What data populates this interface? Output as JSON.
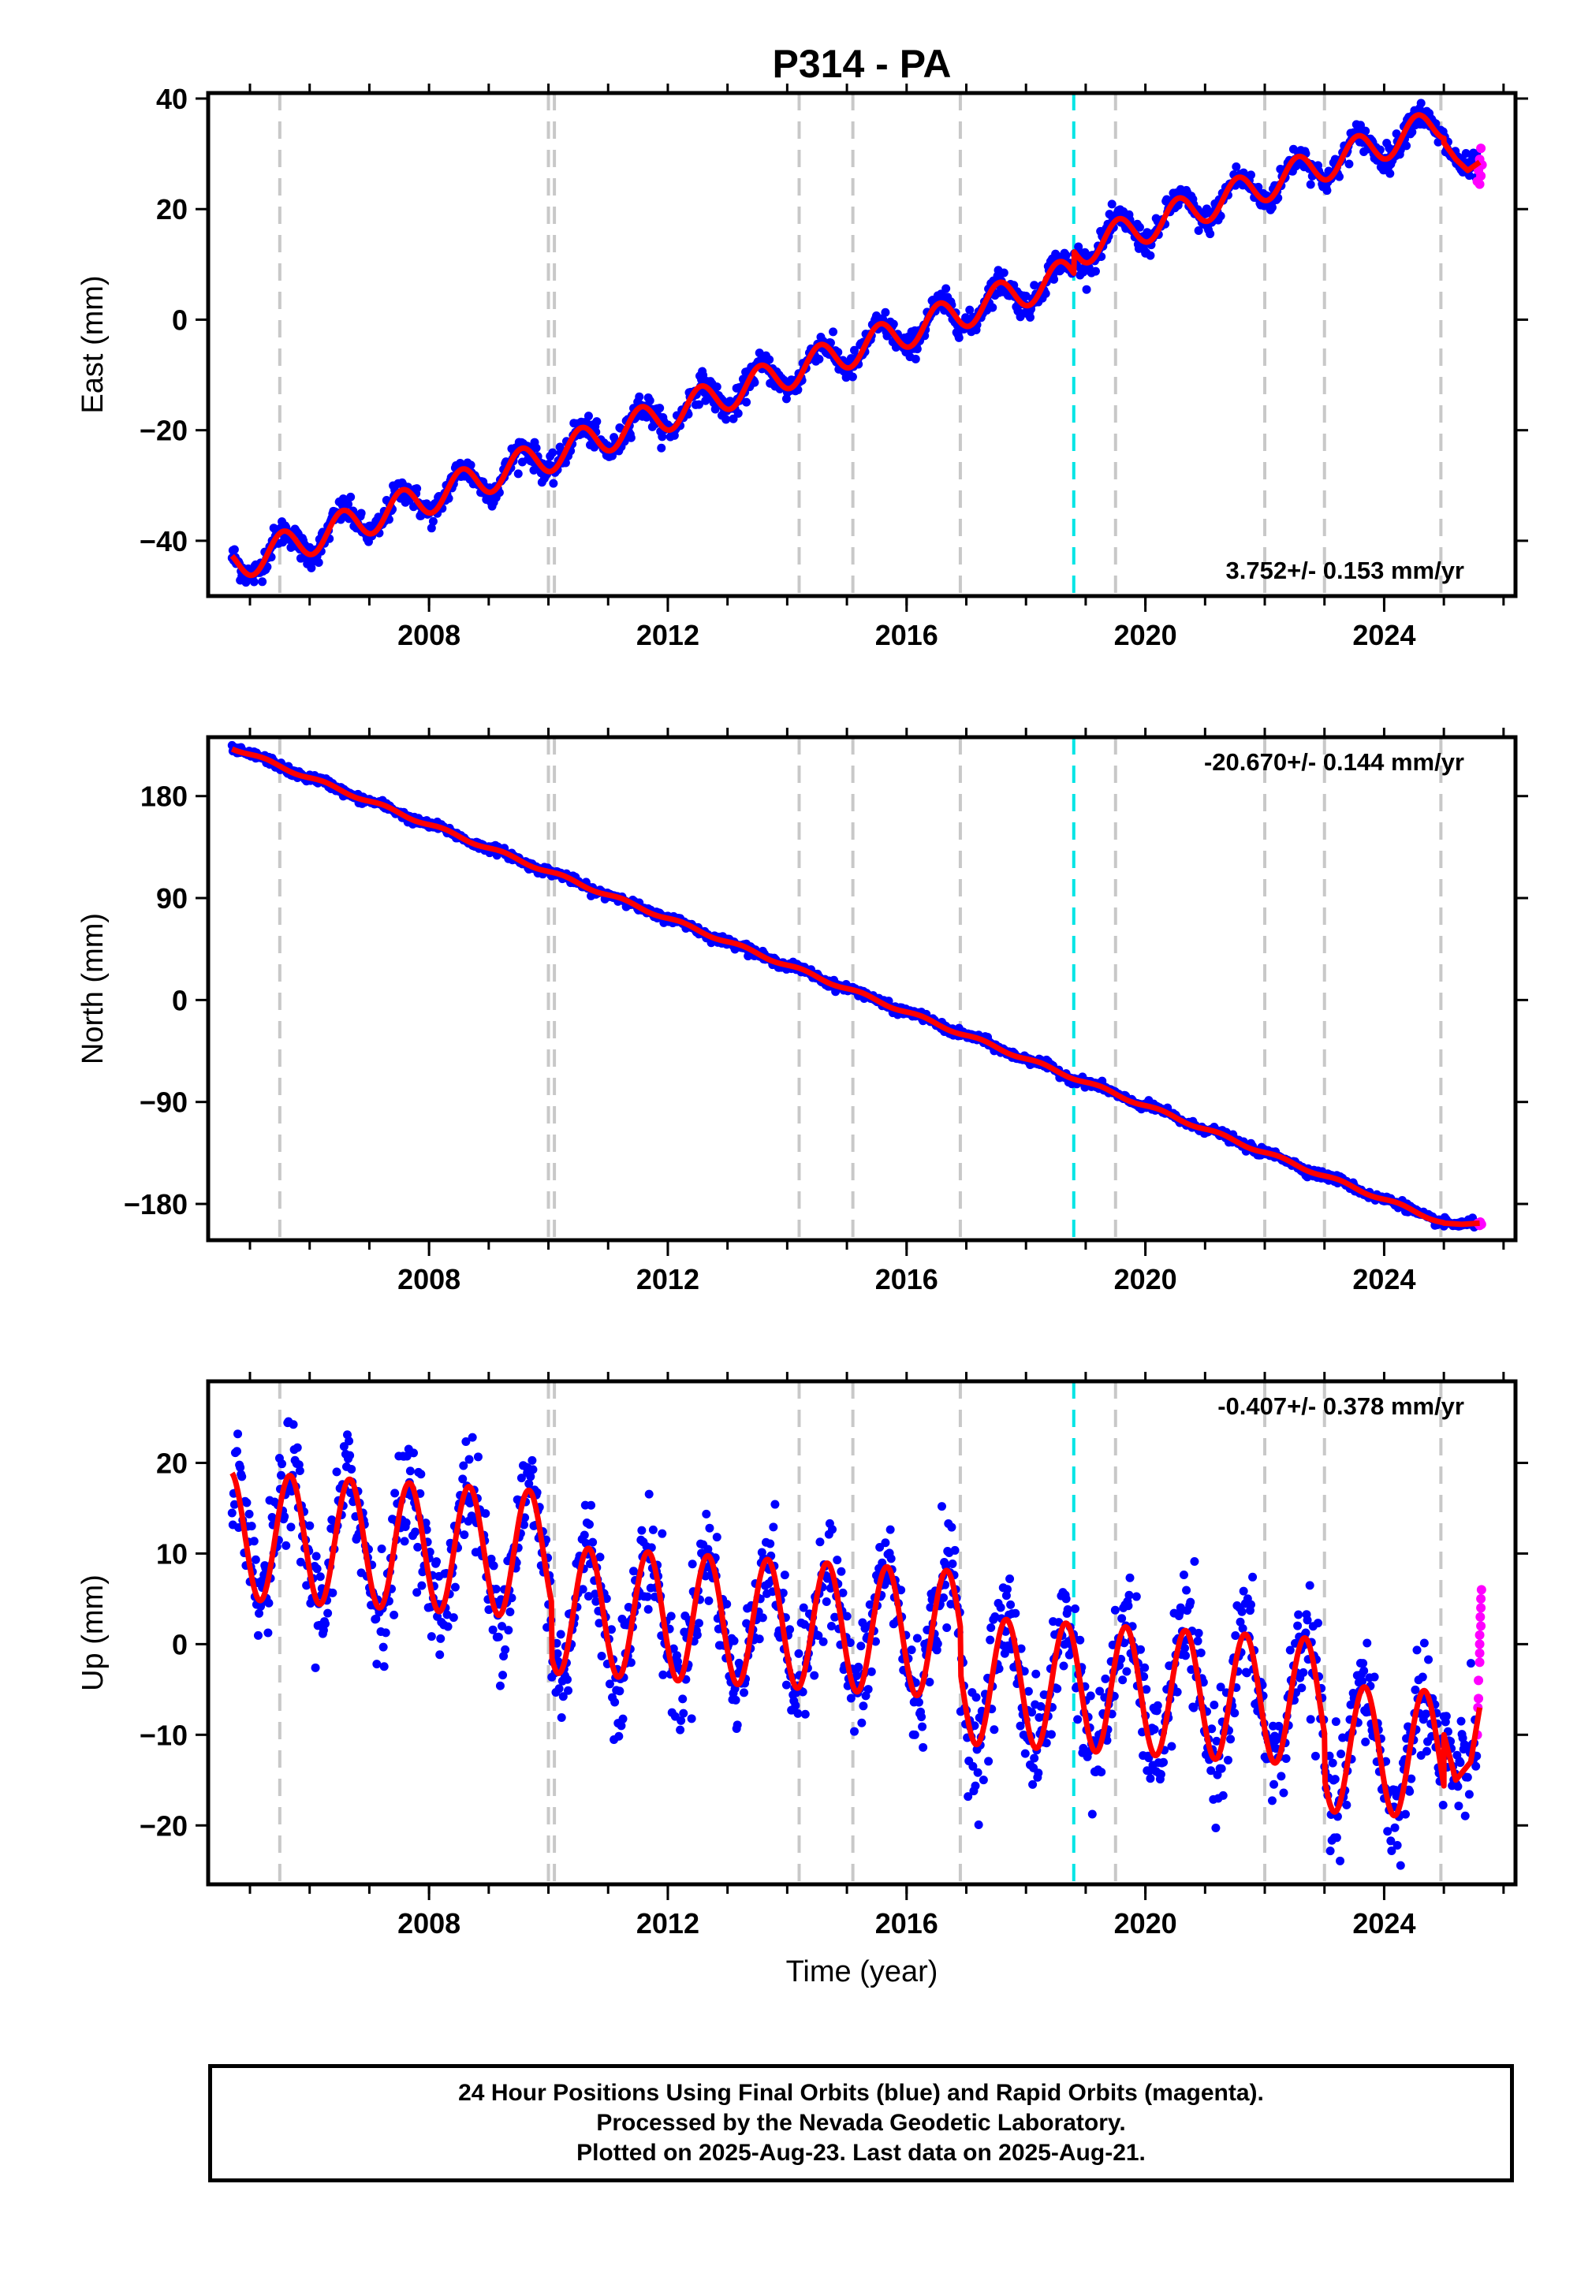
{
  "figure": {
    "title": "P314 - PA",
    "xlabel": "Time (year)",
    "footer": [
      "24 Hour Positions Using Final Orbits (blue) and Rapid Orbits (magenta).",
      "Processed by the Nevada Geodetic Laboratory.",
      "Plotted on 2025-Aug-23. Last data on 2025-Aug-21."
    ],
    "colors": {
      "final_orbits": "#0000ff",
      "rapid_orbits": "#ff00ff",
      "model_fit": "#ff0000",
      "equipment_change_lines": "#c8c8c8",
      "earthquake_line": "#00e5e5"
    }
  },
  "chart_data": [
    {
      "type": "scatter",
      "component": "east",
      "ylabel": "East (mm)",
      "rate": "3.752+/- 0.153 mm/yr",
      "rate_position": "bottom-right",
      "xlim": [
        2004.3,
        2026.2
      ],
      "ylim": [
        -50,
        41
      ],
      "yticks": [
        -40,
        -20,
        0,
        20,
        40
      ],
      "xticks": [
        2008,
        2012,
        2016,
        2020,
        2024
      ],
      "model": {
        "start": 2004.7,
        "end": 2025.0,
        "start_value": -44.5,
        "slope_mm_per_yr": 3.752,
        "annual_amplitude": 3.0,
        "annual_phase": 0.3,
        "offsets": [
          [
            2018.8,
            4.0
          ]
        ],
        "postfit_points": [
          [
            2025.0,
            32
          ],
          [
            2025.2,
            29
          ],
          [
            2025.4,
            27
          ],
          [
            2025.6,
            28.5
          ]
        ]
      },
      "scatter_sd": 1.2,
      "rapid_points": [
        [
          2025.56,
          25
        ],
        [
          2025.58,
          27
        ],
        [
          2025.6,
          29
        ],
        [
          2025.62,
          31
        ],
        [
          2025.64,
          28
        ],
        [
          2025.62,
          26
        ],
        [
          2025.6,
          24.5
        ]
      ],
      "equipment_changes": [
        2005.5,
        2010.0,
        2010.1,
        2014.2,
        2015.1,
        2016.9,
        2019.5,
        2022.0,
        2023.0,
        2024.95
      ],
      "earthquakes": [
        2018.8
      ]
    },
    {
      "type": "scatter",
      "component": "north",
      "ylabel": "North (mm)",
      "rate": "-20.670+/- 0.144 mm/yr",
      "rate_position": "top-right",
      "xlim": [
        2004.3,
        2026.2
      ],
      "ylim": [
        -212,
        232
      ],
      "yticks": [
        -180,
        -90,
        0,
        90,
        180
      ],
      "xticks": [
        2008,
        2012,
        2016,
        2020,
        2024
      ],
      "model": {
        "start": 2004.7,
        "end": 2025.0,
        "start_value": 223,
        "slope_mm_per_yr": -20.67,
        "annual_amplitude": 1.5,
        "annual_phase": 0.0,
        "offsets": [],
        "postfit_points": [
          [
            2025.0,
            -197
          ],
          [
            2025.3,
            -198
          ],
          [
            2025.6,
            -197
          ]
        ]
      },
      "scatter_sd": 1.8,
      "rapid_points": [
        [
          2025.57,
          -197
        ],
        [
          2025.6,
          -199
        ],
        [
          2025.63,
          -198
        ],
        [
          2025.61,
          -196
        ]
      ],
      "equipment_changes": [
        2005.5,
        2010.0,
        2010.1,
        2014.2,
        2015.1,
        2016.9,
        2019.5,
        2022.0,
        2023.0,
        2024.95
      ],
      "earthquakes": [
        2018.8
      ]
    },
    {
      "type": "scatter",
      "component": "up",
      "ylabel": "Up (mm)",
      "rate": "-0.407+/- 0.378 mm/yr",
      "rate_position": "top-right",
      "xlim": [
        2004.3,
        2026.2
      ],
      "ylim": [
        -26.5,
        29
      ],
      "yticks": [
        -20,
        -10,
        0,
        10,
        20
      ],
      "xticks": [
        2008,
        2012,
        2016,
        2020,
        2024
      ],
      "model": {
        "start": 2004.7,
        "end": 2025.0,
        "start_value": 12,
        "slope_mm_per_yr": -0.407,
        "annual_amplitude": 7.0,
        "annual_phase": 0.42,
        "offsets": [
          [
            2010.05,
            -6.0
          ],
          [
            2016.9,
            -5.0
          ],
          [
            2023.0,
            -5.0
          ]
        ],
        "postfit_points": [
          [
            2025.0,
            -10
          ],
          [
            2025.2,
            -15
          ],
          [
            2025.45,
            -13
          ],
          [
            2025.6,
            -7
          ]
        ]
      },
      "scatter_sd": 3.0,
      "rapid_points": [
        [
          2025.56,
          -10
        ],
        [
          2025.57,
          -7
        ],
        [
          2025.58,
          -4
        ],
        [
          2025.6,
          -1
        ],
        [
          2025.6,
          1
        ],
        [
          2025.61,
          3
        ],
        [
          2025.62,
          5
        ],
        [
          2025.63,
          6
        ],
        [
          2025.62,
          4
        ],
        [
          2025.6,
          -2
        ],
        [
          2025.58,
          -6
        ],
        [
          2025.6,
          0
        ],
        [
          2025.62,
          2
        ]
      ],
      "equipment_changes": [
        2005.5,
        2010.0,
        2010.1,
        2014.2,
        2015.1,
        2016.9,
        2019.5,
        2022.0,
        2023.0,
        2024.95
      ],
      "earthquakes": [
        2018.8
      ]
    }
  ]
}
